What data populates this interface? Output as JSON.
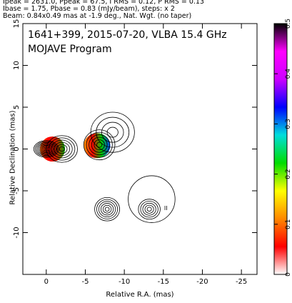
{
  "header": {
    "line1": "Ipeak = 2631.0, Ppeak = 67.5, I RMS = 0.12, P RMS = 0.13",
    "line2": "Ibase = 1.75, Pbase = 0.83 (mJy/beam), steps: x 2",
    "line3": "Beam: 0.84x0.49 mas at -1.9 deg., Nat. Wgt. (no taper)"
  },
  "plot": {
    "title_line1": "1641+399, 2015-07-20, VLBA 15.4 GHz",
    "title_line2": "MOJAVE Program",
    "component_label": "II"
  },
  "chart_data": {
    "type": "contour",
    "xlabel": "Relative R.A. (mas)",
    "ylabel": "Relative Declination (mas)",
    "xlim": [
      3,
      -27
    ],
    "ylim": [
      -15,
      15
    ],
    "x_ticks": [
      0,
      -5,
      -10,
      -15,
      -20,
      -25
    ],
    "y_ticks": [
      15,
      10,
      5,
      0,
      -5,
      -10
    ],
    "colorbar": {
      "min": 0,
      "max": 0.5,
      "ticks": [
        0,
        0.1,
        0.2,
        0.3,
        0.4,
        0.5
      ],
      "colors": [
        "#ffffff",
        "#ff0000",
        "#ff8800",
        "#ffff00",
        "#00dd00",
        "#00dddd",
        "#0000ff",
        "#cc00ff",
        "#ff00ff",
        "#000000"
      ]
    },
    "contour_features": [
      {
        "name": "core",
        "x": 0.0,
        "y": 0.0,
        "rx": 1.6,
        "ry": 1.0,
        "rings": 9
      },
      {
        "name": "inner-jet",
        "x": -2.0,
        "y": 0.0,
        "rx": 2.0,
        "ry": 1.6,
        "rings": 6
      },
      {
        "name": "jet-knot",
        "x": -6.8,
        "y": 0.5,
        "rx": 2.0,
        "ry": 1.8,
        "rings": 6
      },
      {
        "name": "extended-knot",
        "x": -8.5,
        "y": 2.0,
        "rx": 2.8,
        "ry": 2.4,
        "rings": 4
      },
      {
        "name": "component-8",
        "x": -7.8,
        "y": -7.2,
        "rx": 1.6,
        "ry": 1.4,
        "rings": 6
      },
      {
        "name": "component-II",
        "x": -13.2,
        "y": -7.2,
        "rx": 1.4,
        "ry": 1.2,
        "rings": 5
      },
      {
        "name": "halo-II",
        "x": -13.5,
        "y": -6.0,
        "rx": 3.0,
        "ry": 2.8,
        "rings": 1
      }
    ],
    "polarization_regions": [
      {
        "name": "core-pol",
        "x": -0.8,
        "y": 0.0,
        "rx": 1.6,
        "ry": 1.5,
        "stops": [
          "#ff6600",
          "#ff0000",
          "#cc2200",
          "#00aa00"
        ]
      },
      {
        "name": "knot-pol",
        "x": -6.5,
        "y": 0.4,
        "rx": 1.7,
        "ry": 1.5,
        "stops": [
          "#ff9900",
          "#ff0000",
          "#00cc00",
          "#0044ff"
        ]
      }
    ]
  }
}
